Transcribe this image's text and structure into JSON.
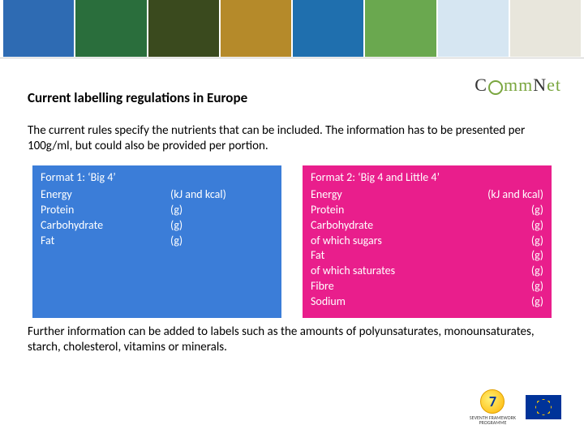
{
  "banner": {
    "tile_colors": [
      "#2e6bb3",
      "#2a6e3c",
      "#3a4a1e",
      "#b58a2a",
      "#1f6fae",
      "#6aa84f",
      "#d6e6f2",
      "#e8e6dc"
    ]
  },
  "logo": {
    "text_parts": [
      "C",
      "mm",
      "N",
      "et"
    ]
  },
  "title": "Current labelling regulations in Europe",
  "intro": "The current rules specify the nutrients that can be included. The information has to be presented per 100g/ml, but could also be provided per portion.",
  "format1": {
    "title": "Format 1: ‘Big 4’",
    "bg": "#3b7dd8",
    "rows": [
      {
        "name": "Energy",
        "unit": "(kJ and kcal)"
      },
      {
        "name": "Protein",
        "unit": "(g)"
      },
      {
        "name": "Carbohydrate",
        "unit": "(g)"
      },
      {
        "name": "Fat",
        "unit": "(g)"
      }
    ]
  },
  "format2": {
    "title": "Format 2: ‘Big 4 and Little 4’",
    "bg": "#e91e8c",
    "rows": [
      {
        "name": "Energy",
        "unit": "(kJ and kcal)"
      },
      {
        "name": "Protein",
        "unit": "(g)"
      },
      {
        "name": "Carbohydrate",
        "unit": "(g)"
      },
      {
        "name": "of which sugars",
        "unit": "(g)"
      },
      {
        "name": "Fat",
        "unit": "(g)"
      },
      {
        "name": "of which saturates",
        "unit": "(g)"
      },
      {
        "name": "Fibre",
        "unit": "(g)"
      },
      {
        "name": "Sodium",
        "unit": "(g)"
      }
    ]
  },
  "closing": "Further information can be added to labels such as the amounts of polyunsaturates, monounsaturates, starch, cholesterol, vitamins or minerals.",
  "footer": {
    "fp7_number": "7",
    "fp7_line1": "SEVENTH FRAMEWORK",
    "fp7_line2": "PROGRAMME"
  }
}
